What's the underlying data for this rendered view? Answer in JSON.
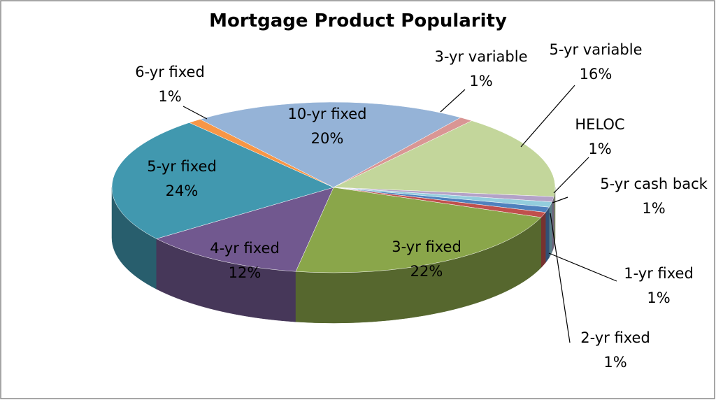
{
  "chart_data": {
    "type": "pie3d",
    "title": "Mortgage Product Popularity",
    "categories": [
      "10-yr fixed",
      "3-yr variable",
      "5-yr variable",
      "HELOC",
      "5-yr cash back",
      "1-yr fixed",
      "2-yr fixed",
      "3-yr fixed",
      "4-yr fixed",
      "5-yr fixed",
      "6-yr fixed"
    ],
    "values": [
      20,
      1,
      16,
      1,
      1,
      1,
      1,
      22,
      12,
      24,
      1
    ],
    "value_labels": [
      "20%",
      "1%",
      "16%",
      "1%",
      "1%",
      "1%",
      "1%",
      "22%",
      "12%",
      "24%",
      "1%"
    ],
    "colors": [
      "#95b3d7",
      "#d99694",
      "#c3d69b",
      "#b3a2c7",
      "#93cddd",
      "#4f81bd",
      "#c0504d",
      "#8aa64a",
      "#71588f",
      "#4198af",
      "#f79646"
    ]
  }
}
